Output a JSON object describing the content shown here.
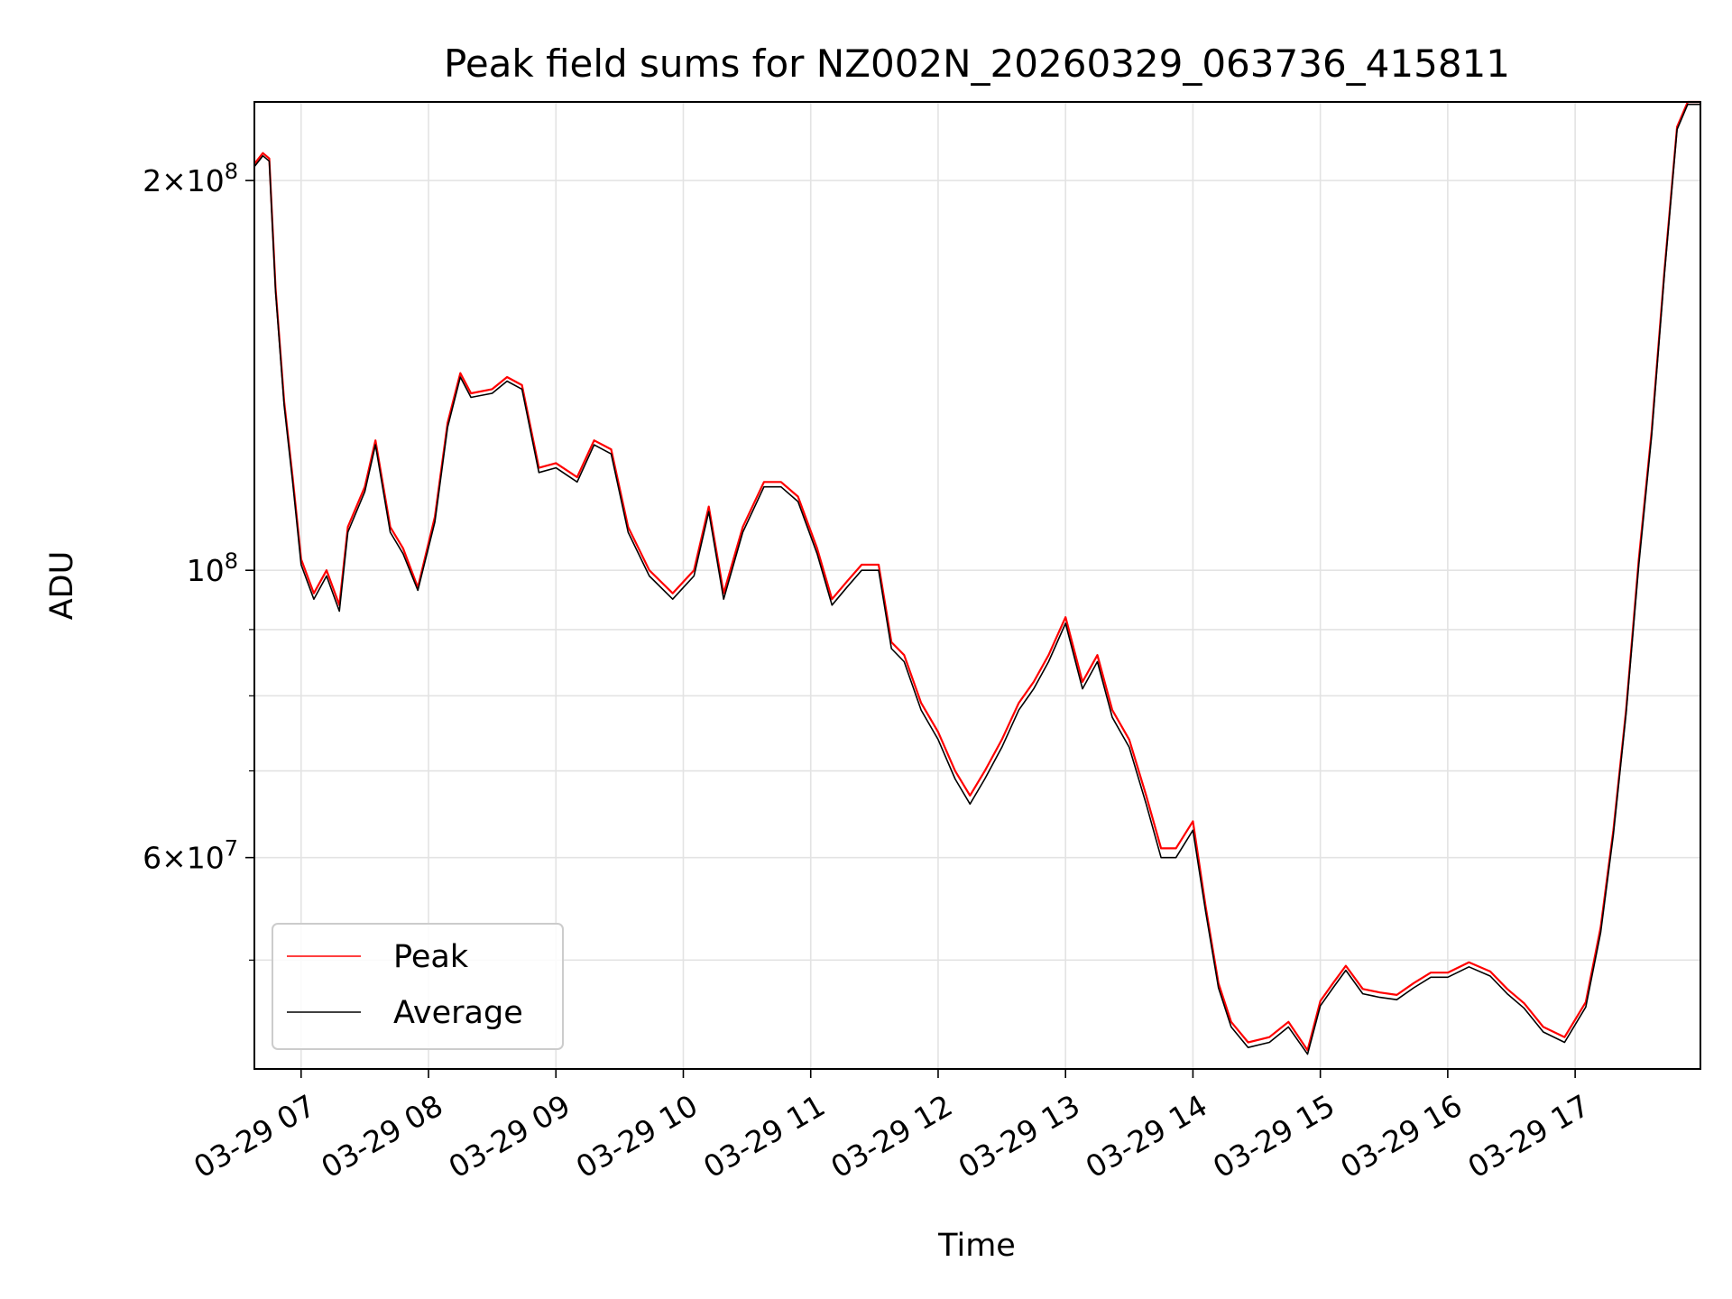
{
  "chart_data": {
    "type": "line",
    "title": "Peak field sums for NZ002N_20260329_063736_415811",
    "xlabel": "Time",
    "ylabel": "ADU",
    "yscale": "log",
    "xlim": [
      "2026-03-29 06:38",
      "2026-03-29 17:59"
    ],
    "ylim": [
      41200000,
      230000000
    ],
    "grid": true,
    "legend_position": "lower-left",
    "x_ticks": [
      {
        "value": "2026-03-29 07:00",
        "label": "03-29 07"
      },
      {
        "value": "2026-03-29 08:00",
        "label": "03-29 08"
      },
      {
        "value": "2026-03-29 09:00",
        "label": "03-29 09"
      },
      {
        "value": "2026-03-29 10:00",
        "label": "03-29 10"
      },
      {
        "value": "2026-03-29 11:00",
        "label": "03-29 11"
      },
      {
        "value": "2026-03-29 12:00",
        "label": "03-29 12"
      },
      {
        "value": "2026-03-29 13:00",
        "label": "03-29 13"
      },
      {
        "value": "2026-03-29 14:00",
        "label": "03-29 14"
      },
      {
        "value": "2026-03-29 15:00",
        "label": "03-29 15"
      },
      {
        "value": "2026-03-29 16:00",
        "label": "03-29 16"
      },
      {
        "value": "2026-03-29 17:00",
        "label": "03-29 17"
      }
    ],
    "y_major_ticks": [
      {
        "value": 60000000,
        "mantissa": "6",
        "exp": "7"
      },
      {
        "value": 100000000,
        "mantissa": "",
        "exp": "8"
      },
      {
        "value": 200000000,
        "mantissa": "2",
        "exp": "8"
      }
    ],
    "y_minor_ticks": [
      50000000,
      70000000,
      80000000,
      90000000
    ],
    "series": [
      {
        "name": "Peak",
        "color": "#ff0000",
        "x": [
          "2026-03-29 06:38",
          "2026-03-29 06:42",
          "2026-03-29 06:45",
          "2026-03-29 06:48",
          "2026-03-29 06:52",
          "2026-03-29 06:56",
          "2026-03-29 07:00",
          "2026-03-29 07:06",
          "2026-03-29 07:12",
          "2026-03-29 07:18",
          "2026-03-29 07:22",
          "2026-03-29 07:30",
          "2026-03-29 07:35",
          "2026-03-29 07:42",
          "2026-03-29 07:48",
          "2026-03-29 07:55",
          "2026-03-29 08:03",
          "2026-03-29 08:09",
          "2026-03-29 08:15",
          "2026-03-29 08:20",
          "2026-03-29 08:30",
          "2026-03-29 08:37",
          "2026-03-29 08:44",
          "2026-03-29 08:52",
          "2026-03-29 09:00",
          "2026-03-29 09:10",
          "2026-03-29 09:18",
          "2026-03-29 09:26",
          "2026-03-29 09:34",
          "2026-03-29 09:44",
          "2026-03-29 09:55",
          "2026-03-29 10:05",
          "2026-03-29 10:12",
          "2026-03-29 10:19",
          "2026-03-29 10:28",
          "2026-03-29 10:38",
          "2026-03-29 10:46",
          "2026-03-29 10:54",
          "2026-03-29 11:03",
          "2026-03-29 11:10",
          "2026-03-29 11:17",
          "2026-03-29 11:24",
          "2026-03-29 11:32",
          "2026-03-29 11:38",
          "2026-03-29 11:44",
          "2026-03-29 11:52",
          "2026-03-29 12:00",
          "2026-03-29 12:08",
          "2026-03-29 12:15",
          "2026-03-29 12:22",
          "2026-03-29 12:30",
          "2026-03-29 12:38",
          "2026-03-29 12:45",
          "2026-03-29 12:52",
          "2026-03-29 13:00",
          "2026-03-29 13:08",
          "2026-03-29 13:15",
          "2026-03-29 13:22",
          "2026-03-29 13:30",
          "2026-03-29 13:38",
          "2026-03-29 13:45",
          "2026-03-29 13:52",
          "2026-03-29 14:00",
          "2026-03-29 14:06",
          "2026-03-29 14:12",
          "2026-03-29 14:18",
          "2026-03-29 14:26",
          "2026-03-29 14:36",
          "2026-03-29 14:45",
          "2026-03-29 14:54",
          "2026-03-29 15:00",
          "2026-03-29 15:06",
          "2026-03-29 15:12",
          "2026-03-29 15:20",
          "2026-03-29 15:28",
          "2026-03-29 15:36",
          "2026-03-29 15:44",
          "2026-03-29 15:52",
          "2026-03-29 16:00",
          "2026-03-29 16:10",
          "2026-03-29 16:20",
          "2026-03-29 16:28",
          "2026-03-29 16:36",
          "2026-03-29 16:45",
          "2026-03-29 16:55",
          "2026-03-29 17:05",
          "2026-03-29 17:12",
          "2026-03-29 17:18",
          "2026-03-29 17:24",
          "2026-03-29 17:30",
          "2026-03-29 17:36",
          "2026-03-29 17:42",
          "2026-03-29 17:48",
          "2026-03-29 17:53",
          "2026-03-29 17:59"
        ],
        "values": [
          206000000,
          210000000,
          208000000,
          165000000,
          135000000,
          118000000,
          102000000,
          96000000,
          100000000,
          94000000,
          108000000,
          116000000,
          126000000,
          108000000,
          104000000,
          97000000,
          110000000,
          130000000,
          142000000,
          137000000,
          138000000,
          141000000,
          139000000,
          120000000,
          121000000,
          118000000,
          126000000,
          124000000,
          108000000,
          100000000,
          96000000,
          100000000,
          112000000,
          96000000,
          108000000,
          117000000,
          117000000,
          114000000,
          104000000,
          95000000,
          98000000,
          101000000,
          101000000,
          88000000,
          86000000,
          79000000,
          75000000,
          70000000,
          67000000,
          70000000,
          74000000,
          79000000,
          82000000,
          86000000,
          92000000,
          82000000,
          86000000,
          78000000,
          74000000,
          67000000,
          61000000,
          61000000,
          64000000,
          55000000,
          48000000,
          44800000,
          43200000,
          43600000,
          44800000,
          42600000,
          46500000,
          48000000,
          49500000,
          47500000,
          47200000,
          47000000,
          48000000,
          48900000,
          48900000,
          49800000,
          49000000,
          47500000,
          46300000,
          44400000,
          43600000,
          46400000,
          53000000,
          63000000,
          78000000,
          102000000,
          128000000,
          170000000,
          220000000,
          230000000,
          230000000
        ]
      },
      {
        "name": "Average",
        "color": "#000000",
        "x": [
          "2026-03-29 06:38",
          "2026-03-29 06:42",
          "2026-03-29 06:45",
          "2026-03-29 06:48",
          "2026-03-29 06:52",
          "2026-03-29 06:56",
          "2026-03-29 07:00",
          "2026-03-29 07:06",
          "2026-03-29 07:12",
          "2026-03-29 07:18",
          "2026-03-29 07:22",
          "2026-03-29 07:30",
          "2026-03-29 07:35",
          "2026-03-29 07:42",
          "2026-03-29 07:48",
          "2026-03-29 07:55",
          "2026-03-29 08:03",
          "2026-03-29 08:09",
          "2026-03-29 08:15",
          "2026-03-29 08:20",
          "2026-03-29 08:30",
          "2026-03-29 08:37",
          "2026-03-29 08:44",
          "2026-03-29 08:52",
          "2026-03-29 09:00",
          "2026-03-29 09:10",
          "2026-03-29 09:18",
          "2026-03-29 09:26",
          "2026-03-29 09:34",
          "2026-03-29 09:44",
          "2026-03-29 09:55",
          "2026-03-29 10:05",
          "2026-03-29 10:12",
          "2026-03-29 10:19",
          "2026-03-29 10:28",
          "2026-03-29 10:38",
          "2026-03-29 10:46",
          "2026-03-29 10:54",
          "2026-03-29 11:03",
          "2026-03-29 11:10",
          "2026-03-29 11:17",
          "2026-03-29 11:24",
          "2026-03-29 11:32",
          "2026-03-29 11:38",
          "2026-03-29 11:44",
          "2026-03-29 11:52",
          "2026-03-29 12:00",
          "2026-03-29 12:08",
          "2026-03-29 12:15",
          "2026-03-29 12:22",
          "2026-03-29 12:30",
          "2026-03-29 12:38",
          "2026-03-29 12:45",
          "2026-03-29 12:52",
          "2026-03-29 13:00",
          "2026-03-29 13:08",
          "2026-03-29 13:15",
          "2026-03-29 13:22",
          "2026-03-29 13:30",
          "2026-03-29 13:38",
          "2026-03-29 13:45",
          "2026-03-29 13:52",
          "2026-03-29 14:00",
          "2026-03-29 14:06",
          "2026-03-29 14:12",
          "2026-03-29 14:18",
          "2026-03-29 14:26",
          "2026-03-29 14:36",
          "2026-03-29 14:45",
          "2026-03-29 14:54",
          "2026-03-29 15:00",
          "2026-03-29 15:06",
          "2026-03-29 15:12",
          "2026-03-29 15:20",
          "2026-03-29 15:28",
          "2026-03-29 15:36",
          "2026-03-29 15:44",
          "2026-03-29 15:52",
          "2026-03-29 16:00",
          "2026-03-29 16:10",
          "2026-03-29 16:20",
          "2026-03-29 16:28",
          "2026-03-29 16:36",
          "2026-03-29 16:45",
          "2026-03-29 16:55",
          "2026-03-29 17:05",
          "2026-03-29 17:12",
          "2026-03-29 17:18",
          "2026-03-29 17:24",
          "2026-03-29 17:30",
          "2026-03-29 17:36",
          "2026-03-29 17:42",
          "2026-03-29 17:48",
          "2026-03-29 17:53",
          "2026-03-29 17:59"
        ],
        "values": [
          205000000,
          209000000,
          207000000,
          164000000,
          134000000,
          117000000,
          101000000,
          95000000,
          99000000,
          93000000,
          107000000,
          115000000,
          125000000,
          107000000,
          103000000,
          96500000,
          109000000,
          129000000,
          141000000,
          136000000,
          137000000,
          140000000,
          138000000,
          119000000,
          120000000,
          117000000,
          125000000,
          123000000,
          107000000,
          99000000,
          95000000,
          99000000,
          111000000,
          95000000,
          107000000,
          116000000,
          116000000,
          113000000,
          103000000,
          94000000,
          97000000,
          100000000,
          100000000,
          87000000,
          85000000,
          78000000,
          74000000,
          69000000,
          66000000,
          69000000,
          73000000,
          78000000,
          81000000,
          85000000,
          91000000,
          81000000,
          85000000,
          77000000,
          73000000,
          66000000,
          60000000,
          60000000,
          63000000,
          54500000,
          47600000,
          44400000,
          42800000,
          43200000,
          44400000,
          42300000,
          46100000,
          47600000,
          49100000,
          47100000,
          46800000,
          46600000,
          47600000,
          48500000,
          48500000,
          49400000,
          48600000,
          47100000,
          45900000,
          44000000,
          43200000,
          46000000,
          52500000,
          62500000,
          77500000,
          101000000,
          127000000,
          169000000,
          219000000,
          229000000,
          229000000
        ]
      }
    ]
  }
}
